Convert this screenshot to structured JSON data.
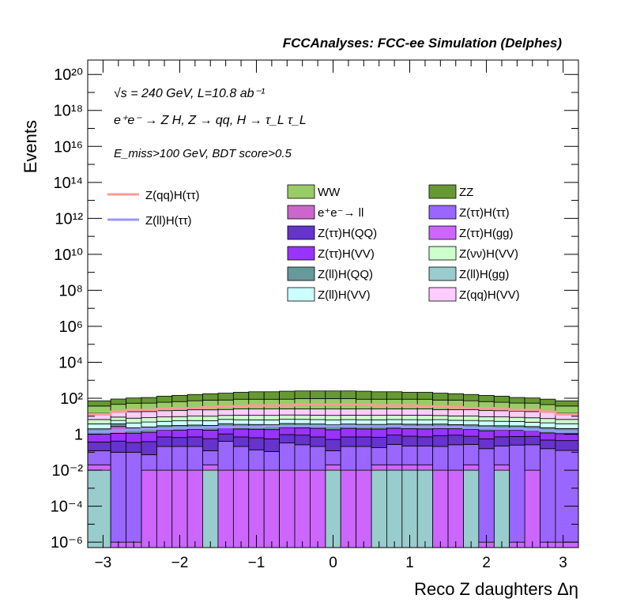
{
  "chart_data": {
    "type": "stacked-histogram",
    "header": "FCCAnalyses: FCC-ee Simulation (Delphes)",
    "xlabel": "Reco Z daughters Δη",
    "ylabel": "Events",
    "xlim": [
      -3.2,
      3.2
    ],
    "ylim_log10": [
      -6.3,
      20.8
    ],
    "log_y": true,
    "annotations": {
      "energy": "√s = 240 GeV, L=10.8 ab⁻¹",
      "process": "e⁺e⁻ → Z H, Z → qq, H → τ_L τ_L",
      "selection": "E_miss>100 GeV, BDT score>0.5"
    },
    "x_ticks": [
      {
        "v": -3,
        "label": "−3"
      },
      {
        "v": -2,
        "label": "−2"
      },
      {
        "v": -1,
        "label": "−1"
      },
      {
        "v": 0,
        "label": "0"
      },
      {
        "v": 1,
        "label": "1"
      },
      {
        "v": 2,
        "label": "2"
      },
      {
        "v": 3,
        "label": "3"
      }
    ],
    "y_ticks": [
      {
        "e": -6,
        "label": "10⁻⁶"
      },
      {
        "e": -4,
        "label": "10⁻⁴"
      },
      {
        "e": -2,
        "label": "10⁻²"
      },
      {
        "e": 0,
        "label": "1"
      },
      {
        "e": 2,
        "label": "10²"
      },
      {
        "e": 4,
        "label": "10⁴"
      },
      {
        "e": 6,
        "label": "10⁶"
      },
      {
        "e": 8,
        "label": "10⁸"
      },
      {
        "e": 10,
        "label": "10¹⁰"
      },
      {
        "e": 12,
        "label": "10¹²"
      },
      {
        "e": 14,
        "label": "10¹⁴"
      },
      {
        "e": 16,
        "label": "10¹⁶"
      },
      {
        "e": 18,
        "label": "10¹⁸"
      },
      {
        "e": 20,
        "label": "10²⁰"
      }
    ],
    "bin_edges": [
      -3.2,
      -2.9,
      -2.7,
      -2.5,
      -2.3,
      -2.1,
      -1.9,
      -1.7,
      -1.5,
      -1.3,
      -1.1,
      -0.9,
      -0.7,
      -0.5,
      -0.3,
      -0.1,
      0.1,
      0.3,
      0.5,
      0.7,
      0.9,
      1.1,
      1.3,
      1.5,
      1.7,
      1.9,
      2.1,
      2.3,
      2.5,
      2.7,
      2.9,
      3.2
    ],
    "stack_order_bottom_to_top": [
      "Z(ll)H(gg)",
      "Z(ττ)H(gg)",
      "Z(ττ)H(ττ)",
      "Z(ττ)H(QQ)",
      "Z(ττ)H(VV)",
      "e⁺e⁻→ ll",
      "Z(ll)H(QQ)",
      "Z(ll)H(VV)",
      "Z(νν)H(VV)",
      "Z(qq)H(VV)",
      "WW",
      "ZZ"
    ],
    "series": [
      {
        "name": "Z(ll)H(gg)",
        "color": "#99cccc",
        "log10_values": [
          -2.0,
          -6.3,
          -6.3,
          -6.3,
          -6.3,
          -6.3,
          -6.3,
          -2.0,
          -6.3,
          -6.3,
          -6.3,
          -6.3,
          -6.3,
          -6.3,
          -6.3,
          -2.0,
          -6.3,
          -6.3,
          -2.0,
          -2.0,
          -2.0,
          -2.0,
          -6.3,
          -6.3,
          -2.0,
          -6.3,
          -2.0,
          -6.3,
          -6.3,
          -6.3,
          -6.3
        ]
      },
      {
        "name": "Z(ττ)H(gg)",
        "color": "#cc66ff",
        "log10_values": [
          -2.0,
          -6.3,
          -6.3,
          -2.0,
          -2.0,
          -2.0,
          -2.0,
          -2.0,
          -2.0,
          -2.0,
          -2.0,
          -2.0,
          -2.0,
          -2.0,
          -2.0,
          -2.0,
          -2.0,
          -2.0,
          -2.0,
          -2.0,
          -2.0,
          -2.0,
          -2.0,
          -2.0,
          -2.0,
          -6.3,
          -2.0,
          -6.3,
          -2.0,
          -6.3,
          -6.3
        ]
      },
      {
        "name": "Z(ττ)H(ττ)",
        "color": "#9966ff",
        "log10_values": [
          -1.0,
          -1.0,
          -1.0,
          -1.2,
          -0.7,
          -0.7,
          -0.7,
          -1.0,
          -0.4,
          -0.7,
          -0.9,
          -1.0,
          -0.5,
          -0.6,
          -0.7,
          -1.0,
          -0.7,
          -0.7,
          -0.8,
          -0.6,
          -0.7,
          -0.7,
          -0.7,
          -0.6,
          -0.6,
          -0.8,
          -0.7,
          -0.6,
          -0.6,
          -0.8,
          -0.9
        ]
      },
      {
        "name": "Z(ττ)H(QQ)",
        "color": "#6633cc",
        "log10_values": [
          -0.6,
          -0.5,
          -0.6,
          -0.5,
          -0.3,
          -0.35,
          -0.3,
          -0.35,
          -0.2,
          -0.3,
          -0.3,
          -0.35,
          -0.2,
          -0.2,
          -0.3,
          -0.4,
          -0.3,
          -0.3,
          -0.3,
          -0.2,
          -0.25,
          -0.3,
          -0.2,
          -0.2,
          -0.3,
          -0.4,
          -0.3,
          -0.3,
          -0.3,
          -0.5,
          -0.5
        ]
      },
      {
        "name": "Z(ττ)H(VV)",
        "color": "#9933ff",
        "log10_values": [
          -0.2,
          -0.15,
          -0.1,
          -0.05,
          0.0,
          0.0,
          0.05,
          0.05,
          0.1,
          0.1,
          0.1,
          0.1,
          0.15,
          0.15,
          0.15,
          0.1,
          0.15,
          0.1,
          0.1,
          0.1,
          0.1,
          0.1,
          0.1,
          0.05,
          0.05,
          0.0,
          0.0,
          -0.05,
          -0.1,
          -0.15,
          -0.2
        ]
      },
      {
        "name": "e⁺e⁻→ ll",
        "color": "#cc66cc",
        "log10_values": [
          -6.3,
          0.2,
          -6.3,
          -6.3,
          -6.3,
          -6.3,
          -6.3,
          -6.3,
          -6.3,
          -6.3,
          -6.3,
          -6.3,
          -6.3,
          -6.3,
          -6.3,
          -6.3,
          -6.3,
          -6.3,
          -6.3,
          -6.3,
          -6.3,
          -6.3,
          -6.3,
          -6.3,
          -6.3,
          -6.3,
          -6.3,
          -6.3,
          -6.3,
          -6.3,
          -6.3
        ]
      },
      {
        "name": "Z(ll)H(QQ)",
        "color": "#669999",
        "log10_values": [
          0.0,
          0.05,
          0.05,
          0.1,
          0.1,
          0.15,
          0.15,
          0.15,
          0.2,
          0.2,
          0.2,
          0.2,
          0.2,
          0.2,
          0.2,
          0.2,
          0.2,
          0.2,
          0.2,
          0.2,
          0.2,
          0.2,
          0.2,
          0.15,
          0.15,
          0.15,
          0.1,
          0.1,
          0.05,
          0.05,
          0.0
        ]
      },
      {
        "name": "Z(ll)H(VV)",
        "color": "#ccffff",
        "log10_values": [
          0.25,
          0.3,
          0.3,
          0.35,
          0.35,
          0.4,
          0.4,
          0.4,
          0.45,
          0.45,
          0.45,
          0.45,
          0.45,
          0.45,
          0.45,
          0.45,
          0.45,
          0.45,
          0.45,
          0.45,
          0.45,
          0.45,
          0.45,
          0.4,
          0.4,
          0.4,
          0.35,
          0.35,
          0.3,
          0.3,
          0.25
        ]
      },
      {
        "name": "Z(νν)H(VV)",
        "color": "#ccffcc",
        "log10_values": [
          0.45,
          0.5,
          0.55,
          0.55,
          0.6,
          0.6,
          0.65,
          0.65,
          0.65,
          0.7,
          0.7,
          0.7,
          0.7,
          0.7,
          0.7,
          0.7,
          0.7,
          0.7,
          0.7,
          0.7,
          0.7,
          0.7,
          0.65,
          0.65,
          0.65,
          0.6,
          0.6,
          0.55,
          0.55,
          0.5,
          0.45
        ]
      },
      {
        "name": "Z(qq)H(VV)",
        "color": "#ffccff",
        "log10_values": [
          0.9,
          0.95,
          1.0,
          1.0,
          1.05,
          1.05,
          1.1,
          1.1,
          1.1,
          1.15,
          1.15,
          1.15,
          1.15,
          1.15,
          1.15,
          1.15,
          1.15,
          1.15,
          1.15,
          1.15,
          1.15,
          1.15,
          1.1,
          1.1,
          1.1,
          1.05,
          1.05,
          1.0,
          1.0,
          0.95,
          0.9
        ]
      },
      {
        "name": "WW",
        "color": "#99cc66",
        "log10_values": [
          1.35,
          1.45,
          1.55,
          1.55,
          1.6,
          1.65,
          1.7,
          1.75,
          1.75,
          1.8,
          1.8,
          1.8,
          1.8,
          1.85,
          1.85,
          1.85,
          1.85,
          1.8,
          1.8,
          1.8,
          1.8,
          1.8,
          1.75,
          1.75,
          1.7,
          1.65,
          1.6,
          1.55,
          1.55,
          1.45,
          1.35
        ]
      },
      {
        "name": "ZZ",
        "color": "#669933",
        "log10_values": [
          1.55,
          1.65,
          1.7,
          1.75,
          1.85,
          1.9,
          1.95,
          2.0,
          2.05,
          2.1,
          2.15,
          2.15,
          2.2,
          2.2,
          2.2,
          2.2,
          2.2,
          2.2,
          2.15,
          2.15,
          2.1,
          2.1,
          2.05,
          2.0,
          1.95,
          1.9,
          1.85,
          1.75,
          1.7,
          1.65,
          1.55
        ]
      }
    ],
    "signal_lines": [
      {
        "name": "Z(qq)H(ττ)",
        "color": "#ff9999",
        "log10_values": [
          1.1,
          1.25,
          1.35,
          1.35,
          1.4,
          1.45,
          1.45,
          1.5,
          1.55,
          1.55,
          1.6,
          1.6,
          1.6,
          1.65,
          1.65,
          1.65,
          1.65,
          1.65,
          1.6,
          1.6,
          1.6,
          1.55,
          1.55,
          1.5,
          1.45,
          1.45,
          1.4,
          1.35,
          1.35,
          1.25,
          1.1
        ]
      },
      {
        "name": "Z(ll)H(ττ)",
        "color": "#9999ff",
        "log10_values": [
          0.15,
          0.2,
          0.25,
          0.3,
          0.3,
          0.35,
          0.35,
          0.4,
          0.4,
          0.4,
          0.4,
          0.45,
          0.45,
          0.45,
          0.45,
          0.45,
          0.45,
          0.45,
          0.45,
          0.45,
          0.4,
          0.4,
          0.4,
          0.4,
          0.35,
          0.35,
          0.3,
          0.3,
          0.25,
          0.2,
          0.15
        ]
      }
    ],
    "legend_lines": [
      "Z(qq)H(ττ)",
      "Z(ll)H(ττ)"
    ],
    "legend_boxes": [
      {
        "name": "WW",
        "color": "#99cc66"
      },
      {
        "name": "ZZ",
        "color": "#669933"
      },
      {
        "name": "e⁺e⁻→ ll",
        "color": "#cc66cc"
      },
      {
        "name": "Z(ττ)H(ττ)",
        "color": "#9966ff"
      },
      {
        "name": "Z(ττ)H(QQ)",
        "color": "#6633cc"
      },
      {
        "name": "Z(ττ)H(gg)",
        "color": "#cc66ff"
      },
      {
        "name": "Z(ττ)H(VV)",
        "color": "#9933ff"
      },
      {
        "name": "Z(νν)H(VV)",
        "color": "#ccffcc"
      },
      {
        "name": "Z(ll)H(QQ)",
        "color": "#669999"
      },
      {
        "name": "Z(ll)H(gg)",
        "color": "#99cccc"
      },
      {
        "name": "Z(ll)H(VV)",
        "color": "#ccffff"
      },
      {
        "name": "Z(qq)H(VV)",
        "color": "#ffccff"
      }
    ]
  }
}
